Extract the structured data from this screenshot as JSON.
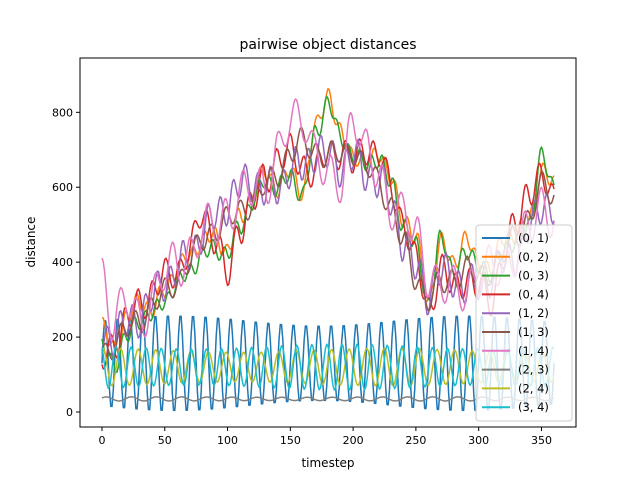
{
  "chart_data": {
    "type": "line",
    "title": "pairwise object distances",
    "xlabel": "timestep",
    "ylabel": "distance",
    "xlim": [
      -17.5,
      377.5
    ],
    "ylim": [
      -40,
      945
    ],
    "xticks": [
      0,
      50,
      100,
      150,
      200,
      250,
      300,
      350
    ],
    "yticks": [
      0,
      200,
      400,
      600,
      800
    ],
    "grid": false,
    "legend_position": "lower-right",
    "n_points": 361,
    "series": [
      {
        "name": "(0, 1)",
        "color": "#1f77b4",
        "kind": "osc",
        "params": {
          "base": 130,
          "amp": 118,
          "period": 10,
          "phase": 0.0
        }
      },
      {
        "name": "(0, 2)",
        "color": "#ff7f0e",
        "kind": "curve",
        "points": [
          [
            0,
            225
          ],
          [
            10,
            170
          ],
          [
            20,
            250
          ],
          [
            30,
            300
          ],
          [
            40,
            270
          ],
          [
            50,
            330
          ],
          [
            60,
            380
          ],
          [
            70,
            420
          ],
          [
            80,
            460
          ],
          [
            90,
            470
          ],
          [
            100,
            430
          ],
          [
            110,
            520
          ],
          [
            120,
            580
          ],
          [
            130,
            640
          ],
          [
            140,
            600
          ],
          [
            150,
            640
          ],
          [
            160,
            590
          ],
          [
            170,
            760
          ],
          [
            180,
            850
          ],
          [
            190,
            740
          ],
          [
            200,
            690
          ],
          [
            210,
            650
          ],
          [
            220,
            700
          ],
          [
            230,
            620
          ],
          [
            240,
            520
          ],
          [
            250,
            460
          ],
          [
            260,
            300
          ],
          [
            270,
            450
          ],
          [
            280,
            400
          ],
          [
            290,
            460
          ],
          [
            300,
            400
          ],
          [
            310,
            380
          ],
          [
            320,
            470
          ],
          [
            330,
            470
          ],
          [
            340,
            520
          ],
          [
            350,
            640
          ],
          [
            360,
            610
          ]
        ],
        "wiggle": {
          "amp": 22,
          "period": 9
        }
      },
      {
        "name": "(0, 3)",
        "color": "#2ca02c",
        "kind": "curve",
        "points": [
          [
            0,
            175
          ],
          [
            10,
            130
          ],
          [
            20,
            200
          ],
          [
            30,
            250
          ],
          [
            40,
            260
          ],
          [
            50,
            300
          ],
          [
            60,
            340
          ],
          [
            70,
            380
          ],
          [
            80,
            420
          ],
          [
            90,
            440
          ],
          [
            100,
            420
          ],
          [
            110,
            500
          ],
          [
            120,
            560
          ],
          [
            130,
            620
          ],
          [
            140,
            600
          ],
          [
            150,
            630
          ],
          [
            160,
            580
          ],
          [
            170,
            740
          ],
          [
            180,
            830
          ],
          [
            190,
            730
          ],
          [
            200,
            690
          ],
          [
            210,
            660
          ],
          [
            220,
            680
          ],
          [
            230,
            610
          ],
          [
            240,
            500
          ],
          [
            250,
            440
          ],
          [
            260,
            290
          ],
          [
            270,
            460
          ],
          [
            280,
            380
          ],
          [
            290,
            420
          ],
          [
            300,
            400
          ],
          [
            310,
            360
          ],
          [
            320,
            440
          ],
          [
            330,
            450
          ],
          [
            340,
            500
          ],
          [
            350,
            680
          ],
          [
            360,
            600
          ]
        ],
        "wiggle": {
          "amp": 22,
          "period": 9
        }
      },
      {
        "name": "(0, 4)",
        "color": "#d62728",
        "kind": "curve",
        "points": [
          [
            0,
            140
          ],
          [
            10,
            190
          ],
          [
            20,
            240
          ],
          [
            30,
            290
          ],
          [
            40,
            320
          ],
          [
            50,
            360
          ],
          [
            60,
            380
          ],
          [
            70,
            430
          ],
          [
            80,
            530
          ],
          [
            90,
            470
          ],
          [
            100,
            360
          ],
          [
            110,
            500
          ],
          [
            120,
            560
          ],
          [
            130,
            620
          ],
          [
            140,
            680
          ],
          [
            150,
            690
          ],
          [
            160,
            660
          ],
          [
            170,
            640
          ],
          [
            180,
            690
          ],
          [
            190,
            700
          ],
          [
            200,
            660
          ],
          [
            210,
            710
          ],
          [
            220,
            690
          ],
          [
            230,
            600
          ],
          [
            240,
            510
          ],
          [
            250,
            400
          ],
          [
            260,
            280
          ],
          [
            270,
            380
          ],
          [
            280,
            330
          ],
          [
            290,
            360
          ],
          [
            300,
            330
          ],
          [
            310,
            300
          ],
          [
            320,
            420
          ],
          [
            330,
            500
          ],
          [
            340,
            600
          ],
          [
            350,
            620
          ],
          [
            360,
            570
          ]
        ],
        "wiggle": {
          "amp": 38,
          "period": 11
        }
      },
      {
        "name": "(1, 2)",
        "color": "#9467bd",
        "kind": "curve",
        "points": [
          [
            0,
            190
          ],
          [
            10,
            210
          ],
          [
            20,
            230
          ],
          [
            30,
            260
          ],
          [
            40,
            300
          ],
          [
            50,
            350
          ],
          [
            60,
            380
          ],
          [
            70,
            420
          ],
          [
            80,
            480
          ],
          [
            90,
            520
          ],
          [
            100,
            560
          ],
          [
            110,
            600
          ],
          [
            120,
            620
          ],
          [
            130,
            590
          ],
          [
            140,
            600
          ],
          [
            150,
            650
          ],
          [
            160,
            650
          ],
          [
            170,
            700
          ],
          [
            180,
            680
          ],
          [
            190,
            660
          ],
          [
            200,
            680
          ],
          [
            210,
            640
          ],
          [
            220,
            620
          ],
          [
            230,
            560
          ],
          [
            240,
            460
          ],
          [
            250,
            380
          ],
          [
            260,
            320
          ],
          [
            270,
            370
          ],
          [
            280,
            360
          ],
          [
            290,
            330
          ],
          [
            300,
            340
          ],
          [
            310,
            360
          ],
          [
            320,
            400
          ],
          [
            330,
            430
          ],
          [
            340,
            480
          ],
          [
            350,
            560
          ],
          [
            360,
            540
          ]
        ],
        "wiggle": {
          "amp": 45,
          "period": 10
        }
      },
      {
        "name": "(1, 3)",
        "color": "#8c564b",
        "kind": "curve",
        "points": [
          [
            0,
            160
          ],
          [
            10,
            180
          ],
          [
            20,
            220
          ],
          [
            30,
            250
          ],
          [
            40,
            280
          ],
          [
            50,
            320
          ],
          [
            60,
            350
          ],
          [
            70,
            400
          ],
          [
            80,
            460
          ],
          [
            90,
            490
          ],
          [
            100,
            510
          ],
          [
            110,
            540
          ],
          [
            120,
            560
          ],
          [
            130,
            600
          ],
          [
            140,
            640
          ],
          [
            150,
            690
          ],
          [
            160,
            720
          ],
          [
            170,
            700
          ],
          [
            180,
            680
          ],
          [
            190,
            690
          ],
          [
            200,
            700
          ],
          [
            210,
            650
          ],
          [
            220,
            620
          ],
          [
            230,
            550
          ],
          [
            240,
            450
          ],
          [
            250,
            360
          ],
          [
            260,
            300
          ],
          [
            270,
            340
          ],
          [
            280,
            360
          ],
          [
            290,
            380
          ],
          [
            300,
            360
          ],
          [
            310,
            380
          ],
          [
            320,
            420
          ],
          [
            330,
            470
          ],
          [
            340,
            520
          ],
          [
            350,
            600
          ],
          [
            360,
            580
          ]
        ],
        "wiggle": {
          "amp": 30,
          "period": 12
        }
      },
      {
        "name": "(1, 4)",
        "color": "#e377c2",
        "kind": "curve",
        "points": [
          [
            0,
            375
          ],
          [
            10,
            240
          ],
          [
            20,
            290
          ],
          [
            30,
            250
          ],
          [
            40,
            310
          ],
          [
            50,
            360
          ],
          [
            60,
            400
          ],
          [
            70,
            430
          ],
          [
            80,
            470
          ],
          [
            90,
            500
          ],
          [
            100,
            540
          ],
          [
            110,
            570
          ],
          [
            120,
            590
          ],
          [
            130,
            620
          ],
          [
            140,
            690
          ],
          [
            150,
            760
          ],
          [
            160,
            800
          ],
          [
            170,
            700
          ],
          [
            180,
            610
          ],
          [
            190,
            620
          ],
          [
            200,
            800
          ],
          [
            210,
            680
          ],
          [
            220,
            640
          ],
          [
            230,
            560
          ],
          [
            240,
            520
          ],
          [
            250,
            470
          ],
          [
            260,
            380
          ],
          [
            270,
            330
          ],
          [
            280,
            320
          ],
          [
            290,
            340
          ],
          [
            300,
            360
          ],
          [
            310,
            370
          ],
          [
            320,
            400
          ],
          [
            330,
            430
          ],
          [
            340,
            480
          ],
          [
            350,
            550
          ],
          [
            360,
            540
          ]
        ],
        "wiggle": {
          "amp": 55,
          "period": 14
        }
      },
      {
        "name": "(2, 3)",
        "color": "#7f7f7f",
        "kind": "osc",
        "params": {
          "base": 35,
          "amp": 5,
          "period": 20,
          "phase": 0.5
        }
      },
      {
        "name": "(2, 4)",
        "color": "#bcbd22",
        "kind": "osc",
        "params": {
          "base": 120,
          "amp": 45,
          "period": 14,
          "phase": 1.2
        }
      },
      {
        "name": "(3, 4)",
        "color": "#17becf",
        "kind": "osc",
        "params": {
          "base": 120,
          "amp": 55,
          "period": 12,
          "phase": 2.0
        }
      }
    ]
  }
}
